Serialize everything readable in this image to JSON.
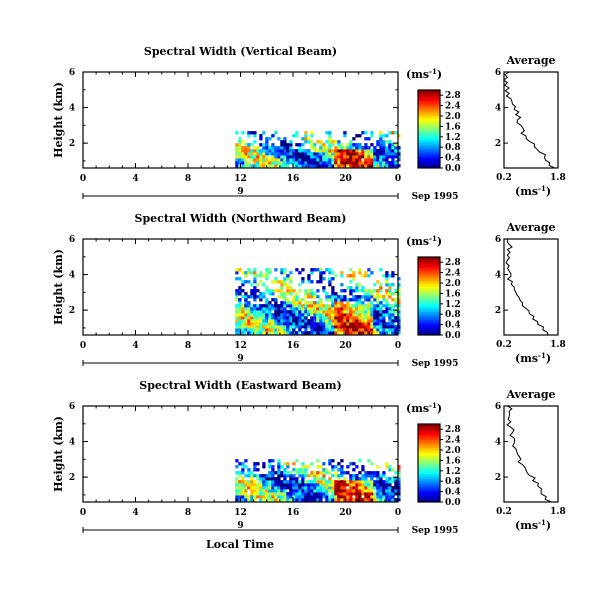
{
  "figure": {
    "xlabel": "Local Time",
    "ylabel": "Height (km)",
    "day_label": "9",
    "date_label": "Sep 1995",
    "average_title": "Average",
    "unit_label_main": "(ms",
    "unit_label_sup": "-1",
    "unit_label_close": ")",
    "profile_xlabel": "(ms",
    "profile_xlabel_sup": "-1",
    "profile_xlabel_close": ")"
  },
  "chart_data": [
    {
      "type": "heatmap",
      "title": "Spectral Width (Vertical Beam)",
      "x_ticks": [
        "0",
        "4",
        "8",
        "12",
        "16",
        "20",
        "0"
      ],
      "xlim": [
        0,
        24
      ],
      "y_ticks": [
        "2",
        "4",
        "6"
      ],
      "ylim": [
        0.6,
        6
      ],
      "colorbar_ticks": [
        "0.0",
        "0.4",
        "0.8",
        "1.2",
        "1.6",
        "2.0",
        "2.4",
        "2.8"
      ],
      "clim": [
        0,
        3.0
      ],
      "data_time_range": [
        11.6,
        24
      ],
      "data_height_top": 2.6,
      "profile": {
        "title": "Average",
        "x_ticks": [
          "0.2",
          "1.8"
        ],
        "xlim": [
          0.2,
          1.8
        ],
        "y_ticks": [
          "2",
          "4",
          "6"
        ],
        "ylim": [
          0.6,
          6
        ],
        "heights": [
          0.6,
          0.9,
          1.2,
          1.5,
          1.8,
          2.1,
          2.4,
          2.7,
          3.0,
          3.3,
          3.6,
          3.9,
          4.2,
          4.5,
          4.8,
          5.1,
          5.4,
          5.7,
          6.0
        ],
        "values": [
          1.7,
          1.55,
          1.4,
          1.25,
          1.1,
          0.95,
          0.85,
          0.8,
          0.7,
          0.6,
          0.55,
          0.5,
          0.45,
          0.4,
          0.35,
          0.35,
          0.3,
          0.3,
          0.35
        ]
      }
    },
    {
      "type": "heatmap",
      "title": "Spectral Width (Northward Beam)",
      "x_ticks": [
        "0",
        "4",
        "8",
        "12",
        "16",
        "20",
        "0"
      ],
      "xlim": [
        0,
        24
      ],
      "y_ticks": [
        "2",
        "4",
        "6"
      ],
      "ylim": [
        0.6,
        6
      ],
      "colorbar_ticks": [
        "0.0",
        "0.4",
        "0.8",
        "1.2",
        "1.6",
        "2.0",
        "2.4",
        "2.8"
      ],
      "clim": [
        0,
        3.0
      ],
      "data_time_range": [
        11.6,
        24
      ],
      "data_height_top": 4.2,
      "profile": {
        "title": "Average",
        "x_ticks": [
          "0.2",
          "1.8"
        ],
        "xlim": [
          0.2,
          1.8
        ],
        "y_ticks": [
          "2",
          "4",
          "6"
        ],
        "ylim": [
          0.6,
          6
        ],
        "heights": [
          0.6,
          0.9,
          1.2,
          1.5,
          1.8,
          2.1,
          2.4,
          2.7,
          3.0,
          3.3,
          3.6,
          3.9,
          4.2,
          4.5,
          4.8,
          5.1,
          5.4,
          5.7,
          6.0
        ],
        "values": [
          1.5,
          1.35,
          1.2,
          1.05,
          0.95,
          0.85,
          0.75,
          0.65,
          0.55,
          0.5,
          0.45,
          0.4,
          0.35,
          0.35,
          0.3,
          0.3,
          0.3,
          0.35,
          0.3
        ]
      }
    },
    {
      "type": "heatmap",
      "title": "Spectral Width (Eastward Beam)",
      "x_ticks": [
        "0",
        "4",
        "8",
        "12",
        "16",
        "20",
        "0"
      ],
      "xlim": [
        0,
        24
      ],
      "y_ticks": [
        "2",
        "4",
        "6"
      ],
      "ylim": [
        0.6,
        6
      ],
      "colorbar_ticks": [
        "0.0",
        "0.4",
        "0.8",
        "1.2",
        "1.6",
        "2.0",
        "2.4",
        "2.8"
      ],
      "clim": [
        0,
        3.0
      ],
      "data_time_range": [
        11.6,
        24
      ],
      "data_height_top": 3.0,
      "profile": {
        "title": "Average",
        "x_ticks": [
          "0.2",
          "1.8"
        ],
        "xlim": [
          0.2,
          1.8
        ],
        "y_ticks": [
          "2",
          "4",
          "6"
        ],
        "ylim": [
          0.6,
          6
        ],
        "heights": [
          0.6,
          0.9,
          1.2,
          1.5,
          1.8,
          2.1,
          2.4,
          2.7,
          3.0,
          3.3,
          3.6,
          3.9,
          4.2,
          4.5,
          4.8,
          5.1,
          5.4,
          5.7,
          6.0
        ],
        "values": [
          1.6,
          1.45,
          1.3,
          1.2,
          1.05,
          0.95,
          0.85,
          0.75,
          0.7,
          0.6,
          0.55,
          0.5,
          0.5,
          0.45,
          0.4,
          0.4,
          0.35,
          0.35,
          0.3
        ]
      }
    }
  ]
}
